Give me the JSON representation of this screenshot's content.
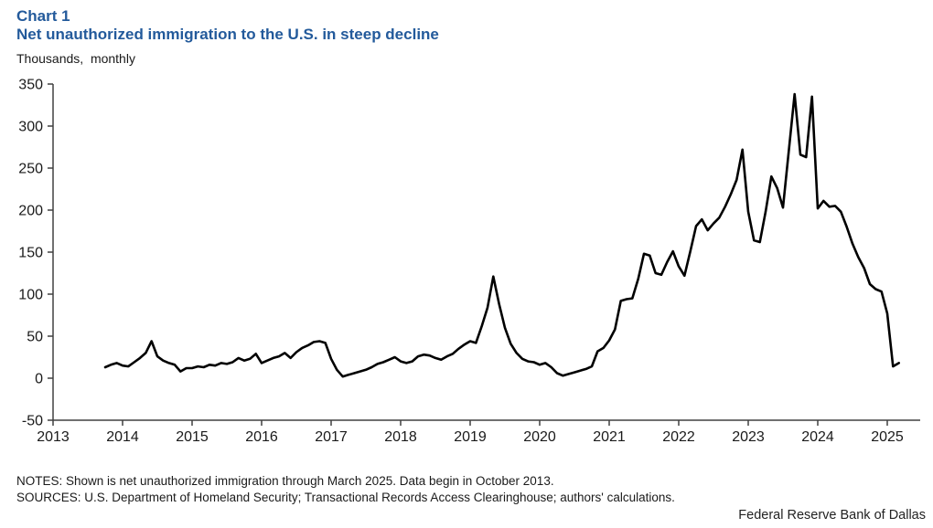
{
  "header": {
    "chart_label": "Chart 1",
    "title": "Net unauthorized immigration to the U.S. in steep decline",
    "units_label": "Thousands,  monthly"
  },
  "footer": {
    "notes": "NOTES: Shown is net unauthorized immigration through March 2025. Data begin in October 2013.",
    "sources": "SOURCES: U.S. Department of Homeland Security; Transactional Records Access Clearinghouse; authors' calculations.",
    "attribution": "Federal Reserve Bank of Dallas"
  },
  "colors": {
    "title_blue": "#235a9b",
    "line": "#000000",
    "axis": "#404040",
    "tick_text": "#1a1a1a"
  },
  "chart_data": {
    "type": "line",
    "title": "Net unauthorized immigration to the U.S. in steep decline",
    "ylabel": "Thousands, monthly",
    "xlabel": "",
    "frequency": "monthly",
    "start_month": "2013-10",
    "end_month": "2025-03",
    "x_start_decimal_year": 2013.75,
    "xlim": [
      2013,
      2025.5
    ],
    "ylim": [
      -50,
      350
    ],
    "x_ticks": [
      2013,
      2014,
      2015,
      2016,
      2017,
      2018,
      2019,
      2020,
      2021,
      2022,
      2023,
      2024,
      2025
    ],
    "y_ticks": [
      -50,
      0,
      50,
      100,
      150,
      200,
      250,
      300,
      350
    ],
    "grid": false,
    "legend": "none",
    "series": [
      {
        "name": "Net unauthorized immigration (thousands, monthly)",
        "values": [
          13,
          16,
          18,
          15,
          14,
          19,
          24,
          30,
          44,
          26,
          21,
          18,
          16,
          8,
          12,
          12,
          14,
          13,
          16,
          15,
          18,
          17,
          19,
          24,
          21,
          23,
          29,
          18,
          21,
          24,
          26,
          30,
          24,
          31,
          36,
          39,
          43,
          44,
          42,
          23,
          10,
          2,
          4,
          6,
          8,
          10,
          13,
          17,
          19,
          22,
          25,
          20,
          18,
          20,
          26,
          28,
          27,
          24,
          22,
          26,
          29,
          35,
          40,
          44,
          42,
          62,
          84,
          121,
          88,
          60,
          41,
          30,
          23,
          20,
          19,
          16,
          18,
          13,
          6,
          3,
          5,
          7,
          9,
          11,
          14,
          32,
          36,
          45,
          58,
          92,
          94,
          95,
          118,
          148,
          146,
          125,
          123,
          138,
          151,
          133,
          122,
          151,
          181,
          189,
          176,
          184,
          191,
          204,
          219,
          236,
          272,
          198,
          164,
          162,
          198,
          240,
          226,
          203,
          270,
          338,
          266,
          263,
          335,
          202,
          211,
          204,
          205,
          198,
          180,
          160,
          144,
          131,
          112,
          106,
          103,
          77,
          14,
          18
        ]
      }
    ]
  }
}
